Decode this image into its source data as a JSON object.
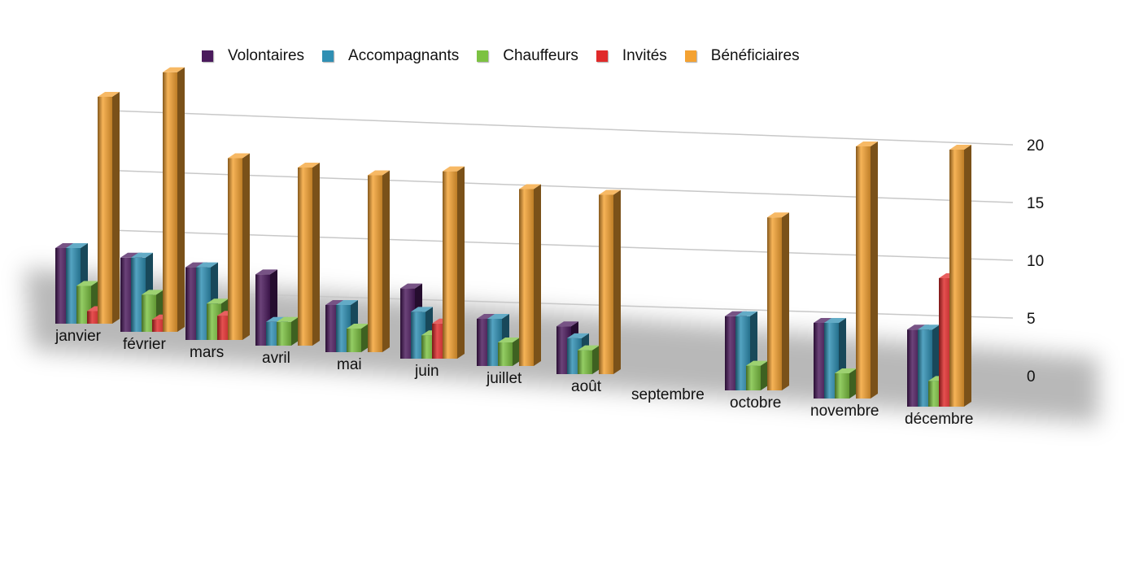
{
  "chart_data": {
    "type": "bar",
    "title": "",
    "xlabel": "",
    "ylabel": "",
    "ylim": [
      0,
      20
    ],
    "yticks": [
      "0",
      "5",
      "10",
      "15",
      "20"
    ],
    "grid": true,
    "legend_position": "top",
    "categories": [
      "janvier",
      "février",
      "mars",
      "avril",
      "mai",
      "juin",
      "juillet",
      "août",
      "septembre",
      "octobre",
      "novembre",
      "décembre"
    ],
    "series": [
      {
        "name": "Volontaires",
        "color": "#4a1a5c",
        "values": [
          6,
          6,
          6,
          6,
          4,
          6,
          4,
          4,
          0,
          6,
          6,
          6
        ]
      },
      {
        "name": "Accompagnants",
        "color": "#2f8fb3",
        "values": [
          6,
          6,
          6,
          2,
          4,
          4,
          4,
          3,
          0,
          6,
          6,
          6
        ]
      },
      {
        "name": "Chauffeurs",
        "color": "#7cc242",
        "values": [
          3,
          3,
          3,
          2,
          2,
          2,
          2,
          2,
          0,
          2,
          2,
          2
        ]
      },
      {
        "name": "Invités",
        "color": "#e02a2a",
        "values": [
          1,
          1,
          2,
          0,
          0,
          3,
          0,
          0,
          0,
          0,
          0,
          10
        ]
      },
      {
        "name": "Bénéficiaires",
        "color": "#f4a232",
        "values": [
          18,
          21,
          15,
          15,
          15,
          16,
          15,
          15,
          0,
          14,
          20,
          20
        ]
      }
    ]
  }
}
